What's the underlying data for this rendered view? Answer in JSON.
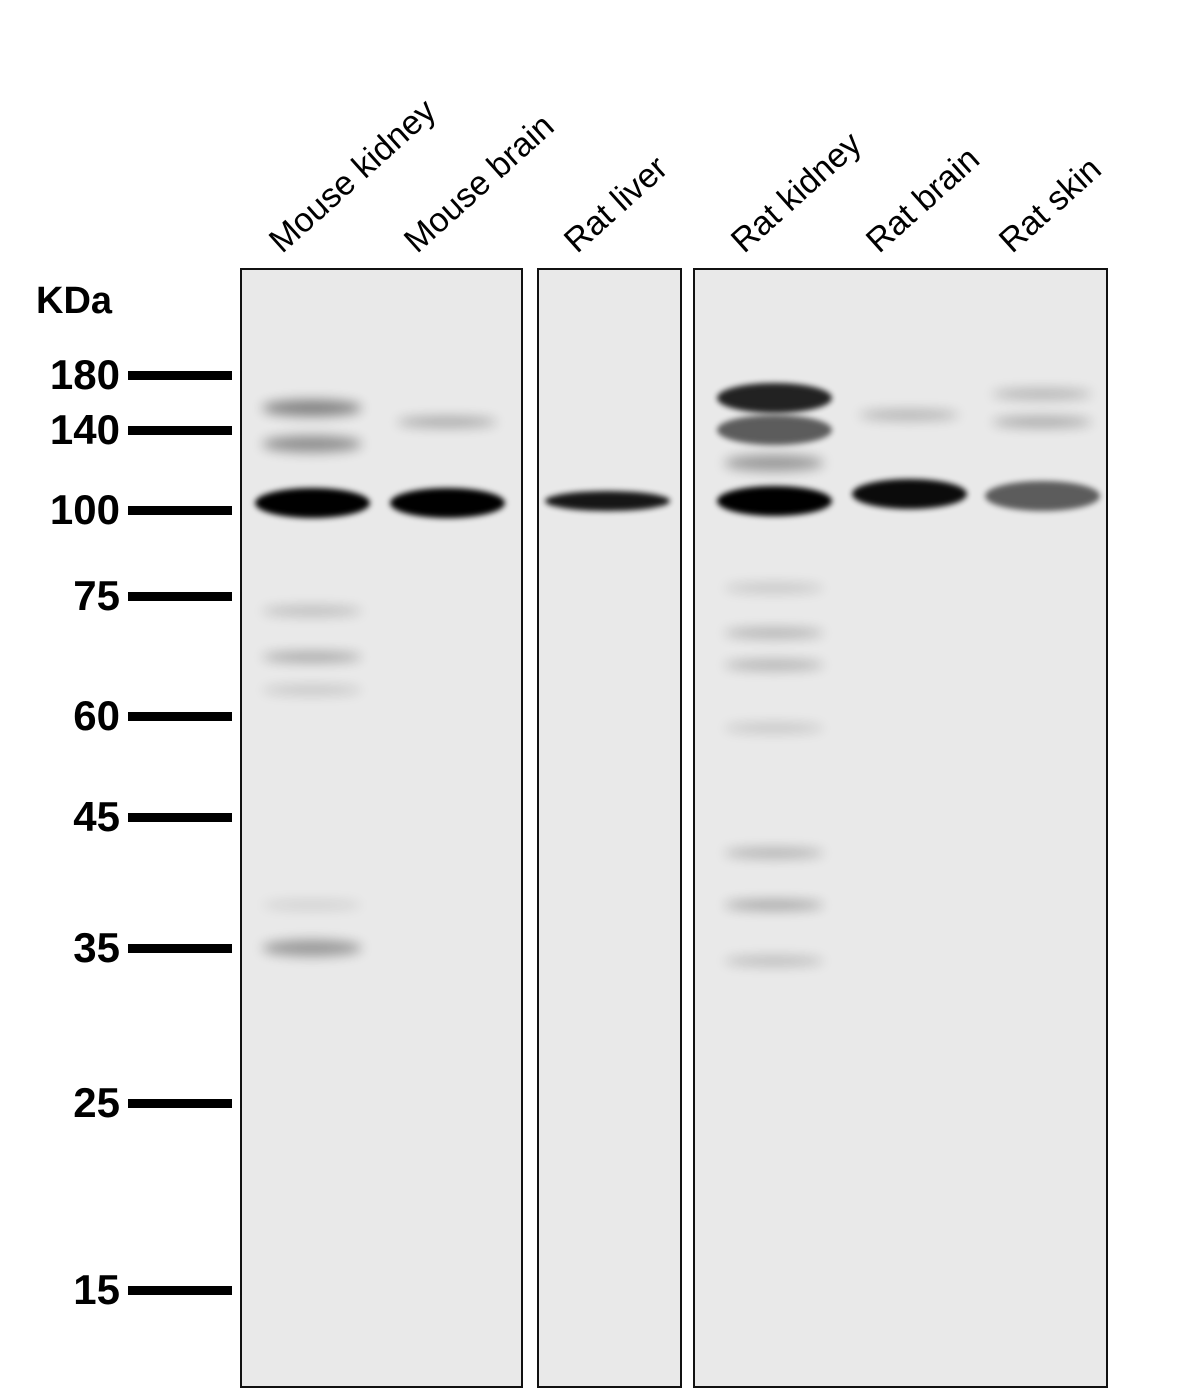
{
  "unit_label": "KDa",
  "markers": [
    "180",
    "140",
    "100",
    "75",
    "60",
    "45",
    "35",
    "25",
    "15"
  ],
  "lanes": [
    {
      "label": "Mouse kidney",
      "panel": 0,
      "bands": [
        {
          "kda": 103,
          "intensity": 1.0
        },
        {
          "kda": 155,
          "intensity": 0.45
        },
        {
          "kda": 132,
          "intensity": 0.4
        },
        {
          "kda": 73,
          "intensity": 0.2
        },
        {
          "kda": 67,
          "intensity": 0.3
        },
        {
          "kda": 63,
          "intensity": 0.15
        },
        {
          "kda": 38,
          "intensity": 0.1
        },
        {
          "kda": 35,
          "intensity": 0.35
        }
      ]
    },
    {
      "label": "Mouse brain",
      "panel": 0,
      "bands": [
        {
          "kda": 103,
          "intensity": 1.0
        },
        {
          "kda": 145,
          "intensity": 0.3
        }
      ]
    },
    {
      "label": "Rat liver",
      "panel": 1,
      "bands": [
        {
          "kda": 104,
          "intensity": 0.9
        }
      ]
    },
    {
      "label": "Rat kidney",
      "panel": 2,
      "bands": [
        {
          "kda": 104,
          "intensity": 1.0
        },
        {
          "kda": 162,
          "intensity": 0.85
        },
        {
          "kda": 140,
          "intensity": 0.6
        },
        {
          "kda": 122,
          "intensity": 0.35
        },
        {
          "kda": 77,
          "intensity": 0.15
        },
        {
          "kda": 70,
          "intensity": 0.25
        },
        {
          "kda": 66,
          "intensity": 0.25
        },
        {
          "kda": 58,
          "intensity": 0.15
        },
        {
          "kda": 42,
          "intensity": 0.25
        },
        {
          "kda": 38,
          "intensity": 0.3
        },
        {
          "kda": 34,
          "intensity": 0.2
        }
      ]
    },
    {
      "label": "Rat brain",
      "panel": 2,
      "bands": [
        {
          "kda": 107,
          "intensity": 0.95
        },
        {
          "kda": 150,
          "intensity": 0.25
        }
      ]
    },
    {
      "label": "Rat skin",
      "panel": 2,
      "bands": [
        {
          "kda": 106,
          "intensity": 0.6
        },
        {
          "kda": 165,
          "intensity": 0.25
        },
        {
          "kda": 145,
          "intensity": 0.3
        }
      ]
    }
  ]
}
